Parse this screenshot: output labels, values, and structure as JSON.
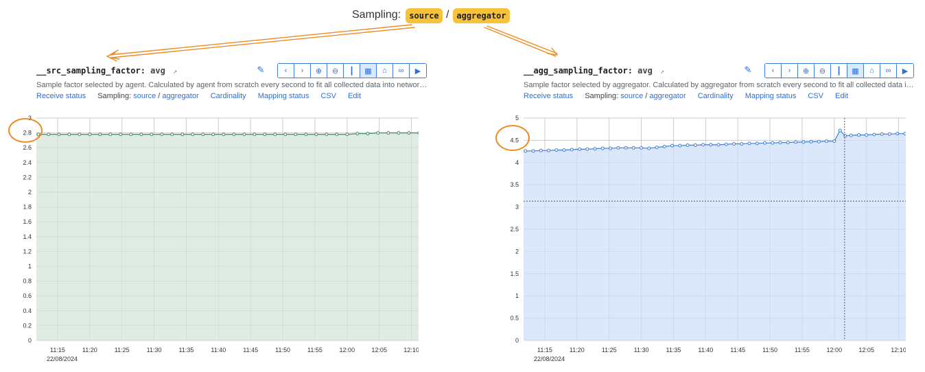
{
  "header": {
    "title": "Sampling:",
    "source_label": "source",
    "separator": "/",
    "aggregator_label": "aggregator"
  },
  "colors": {
    "highlight": "#f7c23a",
    "annotation": "#ee8a1f",
    "link": "#2f6fd8",
    "green_fill": "#dfece3",
    "green_line": "#3d8b5c",
    "blue_fill": "#dbe7fb",
    "blue_line": "#3b7ddd"
  },
  "toolbar_icons": [
    "chevron-left-icon",
    "chevron-right-icon",
    "zoom-in-icon",
    "zoom-out-icon",
    "columns-icon",
    "table-icon",
    "lock-icon",
    "link-icon",
    "play-icon"
  ],
  "left": {
    "metric": "__src_sampling_factor",
    "aggregation": "avg",
    "description": "Sample factor selected by agent. Calculated by agent from scratch every second to fit all collected data into network…",
    "links": {
      "receive_status": "Receive status",
      "sampling_prefix": "Sampling:",
      "source": "source",
      "slash": "/",
      "aggregator": "aggregator",
      "cardinality": "Cardinality",
      "mapping_status": "Mapping status",
      "csv": "CSV",
      "edit": "Edit"
    },
    "chart_data": {
      "type": "area",
      "y_ticks": [
        "0",
        "0.2",
        "0.4",
        "0.6",
        "0.8",
        "1",
        "1.2",
        "1.4",
        "1.6",
        "1.8",
        "2",
        "2.2",
        "2.4",
        "2.6",
        "2.8",
        "3"
      ],
      "ylim": [
        0,
        3
      ],
      "x_ticks": [
        "11:15",
        "11:20",
        "11:25",
        "11:30",
        "11:35",
        "11:40",
        "11:45",
        "11:50",
        "11:55",
        "12:00",
        "12:05",
        "12:10"
      ],
      "date_label": "22/08/2024",
      "x_range_minutes": [
        11.7,
        72.5
      ],
      "series": [
        {
          "x": [
            12,
            13.6,
            15.2,
            16.8,
            18.4,
            20,
            21.6,
            23.2,
            24.8,
            26.4,
            28,
            29.6,
            31.2,
            32.8,
            34.4,
            36,
            37.6,
            39.2,
            40.8,
            42.4,
            44,
            45.6,
            47.2,
            48.8,
            50.4,
            52,
            53.6,
            55.2,
            56.8,
            58.4,
            60,
            61.6,
            63.2,
            64.8,
            66.4,
            68,
            69.6,
            71.2,
            72.5
          ],
          "values": [
            2.78,
            2.78,
            2.78,
            2.78,
            2.78,
            2.78,
            2.78,
            2.78,
            2.78,
            2.78,
            2.78,
            2.78,
            2.78,
            2.78,
            2.78,
            2.78,
            2.78,
            2.78,
            2.78,
            2.78,
            2.78,
            2.78,
            2.78,
            2.78,
            2.78,
            2.78,
            2.78,
            2.78,
            2.78,
            2.78,
            2.78,
            2.79,
            2.79,
            2.8,
            2.8,
            2.8,
            2.8,
            2.8,
            2.8
          ]
        }
      ]
    }
  },
  "right": {
    "metric": "__agg_sampling_factor",
    "aggregation": "avg",
    "description": "Sample factor selected by aggregator. Calculated by aggregator from scratch every second to fit all collected data int…",
    "links": {
      "receive_status": "Receive status",
      "sampling_prefix": "Sampling:",
      "source": "source",
      "slash": "/",
      "aggregator": "aggregator",
      "cardinality": "Cardinality",
      "mapping_status": "Mapping status",
      "csv": "CSV",
      "edit": "Edit"
    },
    "chart_data": {
      "type": "area",
      "y_ticks": [
        "0",
        "0.5",
        "1",
        "1.5",
        "2",
        "2.5",
        "3",
        "3.5",
        "4",
        "4.5",
        "5"
      ],
      "ylim": [
        0,
        5
      ],
      "x_ticks": [
        "11:15",
        "11:20",
        "11:25",
        "11:30",
        "11:35",
        "11:40",
        "11:45",
        "11:50",
        "11:55",
        "12:00",
        "12:05",
        "12:10"
      ],
      "date_label": "22/08/2024",
      "x_range_minutes": [
        11.7,
        72.5
      ],
      "crosshair": {
        "x": 61.6,
        "y": 3.13
      },
      "series": [
        {
          "x": [
            12,
            13.2,
            14.4,
            15.6,
            16.8,
            18,
            19.2,
            20.4,
            21.6,
            22.8,
            24,
            25.2,
            26.4,
            27.6,
            28.8,
            30,
            31.2,
            32.4,
            33.6,
            34.8,
            36,
            37.2,
            38.4,
            39.6,
            40.8,
            42,
            43.2,
            44.4,
            45.6,
            46.8,
            48,
            49.2,
            50.4,
            51.6,
            52.8,
            54,
            55.2,
            56.4,
            57.6,
            58.8,
            60,
            60.9,
            61.7,
            62.6,
            63.8,
            65,
            66.2,
            67.4,
            68.6,
            69.8,
            71,
            72.2
          ],
          "values": [
            4.26,
            4.26,
            4.27,
            4.27,
            4.28,
            4.28,
            4.29,
            4.3,
            4.3,
            4.31,
            4.32,
            4.32,
            4.33,
            4.33,
            4.33,
            4.33,
            4.32,
            4.34,
            4.36,
            4.38,
            4.38,
            4.39,
            4.39,
            4.4,
            4.4,
            4.4,
            4.41,
            4.42,
            4.42,
            4.43,
            4.43,
            4.44,
            4.44,
            4.45,
            4.45,
            4.46,
            4.46,
            4.47,
            4.47,
            4.48,
            4.48,
            4.72,
            4.6,
            4.61,
            4.62,
            4.62,
            4.63,
            4.64,
            4.64,
            4.65,
            4.65,
            4.66
          ]
        }
      ]
    }
  }
}
